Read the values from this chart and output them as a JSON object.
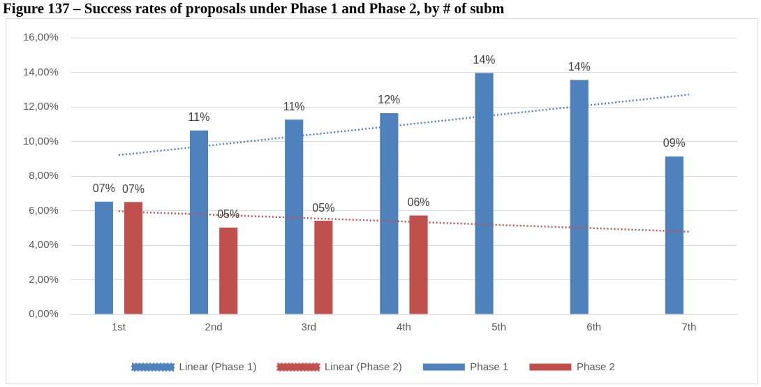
{
  "chart_data": {
    "type": "bar",
    "title": "Figure 137 – Success rates of proposals under Phase 1 and Phase 2, by # of subm",
    "categories": [
      "1st",
      "2nd",
      "3rd",
      "4th",
      "5th",
      "6th",
      "7th"
    ],
    "ylim": [
      0,
      16
    ],
    "yticks": [
      {
        "value": 0,
        "label": "0,00%"
      },
      {
        "value": 2,
        "label": "2,00%"
      },
      {
        "value": 4,
        "label": "4,00%"
      },
      {
        "value": 6,
        "label": "6,00%"
      },
      {
        "value": 8,
        "label": "8,00%"
      },
      {
        "value": 10,
        "label": "10,00%"
      },
      {
        "value": 12,
        "label": "12,00%"
      },
      {
        "value": 14,
        "label": "14,00%"
      },
      {
        "value": 16,
        "label": "16,00%"
      }
    ],
    "grid": "y",
    "legend": "bottom",
    "marker": "none",
    "line_style": "dotted",
    "series": [
      {
        "name": "Phase 1",
        "color": "#4f81bd",
        "values": [
          6.52,
          10.64,
          11.26,
          11.64,
          13.96,
          13.56,
          9.13
        ],
        "value_labels": [
          "07%",
          "11%",
          "11%",
          "12%",
          "14%",
          "14%",
          "09%"
        ]
      },
      {
        "name": "Phase 2",
        "color": "#c0504d",
        "values": [
          6.5,
          5.02,
          5.41,
          5.72,
          null,
          null,
          null
        ],
        "value_labels": [
          "07%",
          "05%",
          "05%",
          "06%",
          null,
          null,
          null
        ]
      },
      {
        "name": "Linear (Phase 1)",
        "type": "line",
        "color": "#4f81bd",
        "values": [
          9.21,
          9.79,
          10.38,
          10.96,
          11.55,
          12.13,
          12.71
        ]
      },
      {
        "name": "Linear (Phase 2)",
        "type": "line",
        "color": "#c0504d",
        "values": [
          5.95,
          5.76,
          5.56,
          5.37,
          5.17,
          4.98,
          4.78
        ]
      }
    ]
  }
}
